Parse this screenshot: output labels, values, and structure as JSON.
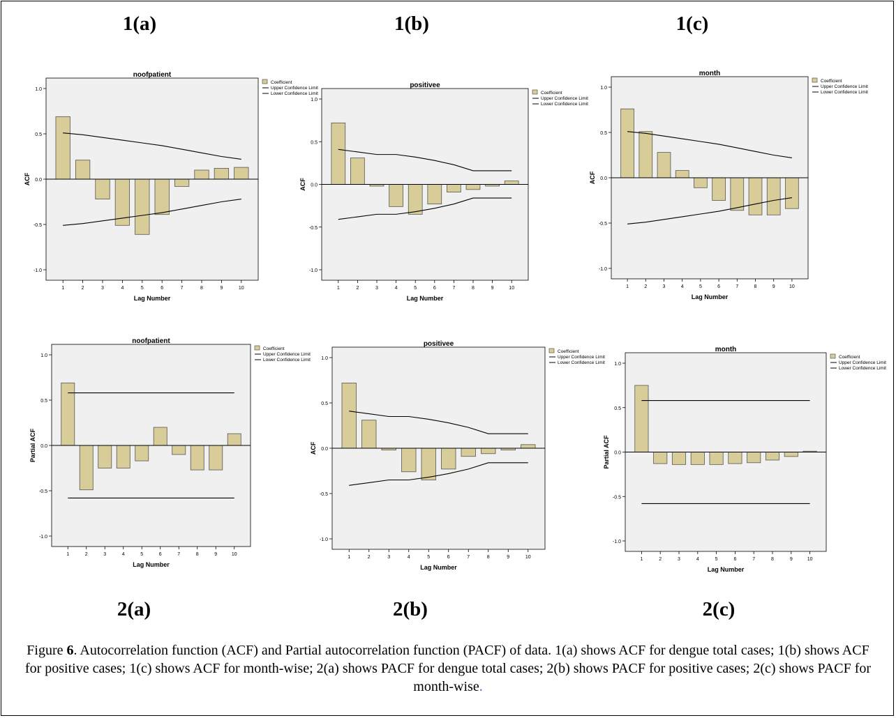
{
  "labels": {
    "p1a": "1(a)",
    "p1b": "1(b)",
    "p1c": "1(c)",
    "p2a": "2(a)",
    "p2b": "2(b)",
    "p2c": "2(c)"
  },
  "caption": {
    "prefix": "Figure ",
    "number": "6",
    "text": ". Autocorrelation function (ACF) and Partial autocorrelation function (PACF) of data. 1(a) shows ACF for dengue total cases; 1(b) shows ACF for positive cases; 1(c) shows ACF for month-wise; 2(a) shows PACF for dengue total cases; 2(b) shows PACF for positive cases; 2(c) shows PACF for month-wise",
    "end": "."
  },
  "colors": {
    "bar": "#d8cc98",
    "bar_stroke": "#555555",
    "plot_bg": "#f0f0f0",
    "line": "#000000"
  },
  "chart_data": [
    {
      "type": "bar",
      "title": "noofpatient",
      "xlabel": "Lag Number",
      "ylabel": "ACF",
      "categories": [
        "1",
        "2",
        "3",
        "4",
        "5",
        "6",
        "7",
        "8",
        "9",
        "10"
      ],
      "yticks": [
        "1.0",
        "0.5",
        "0.0",
        "-0.5",
        "-1.0"
      ],
      "ylim": [
        -1.0,
        1.0
      ],
      "series": [
        {
          "name": "Coefficient",
          "values": [
            0.69,
            0.21,
            -0.22,
            -0.51,
            -0.61,
            -0.39,
            -0.08,
            0.1,
            0.12,
            0.13
          ]
        },
        {
          "name": "Upper Confidence Limit",
          "values": [
            0.51,
            0.49,
            0.46,
            0.43,
            0.4,
            0.37,
            0.33,
            0.29,
            0.25,
            0.22
          ]
        },
        {
          "name": "Lower Confidence Limit",
          "values": [
            -0.51,
            -0.49,
            -0.46,
            -0.43,
            -0.4,
            -0.37,
            -0.33,
            -0.29,
            -0.25,
            -0.22
          ]
        }
      ]
    },
    {
      "type": "bar",
      "title": "positivee",
      "xlabel": "Lag Number",
      "ylabel": "ACF",
      "categories": [
        "1",
        "2",
        "3",
        "4",
        "5",
        "6",
        "7",
        "8",
        "9",
        "10"
      ],
      "yticks": [
        "1.0",
        "0.5",
        "0.0",
        "-0.5",
        "-1.0"
      ],
      "ylim": [
        -1.0,
        1.0
      ],
      "series": [
        {
          "name": "Coefficient",
          "values": [
            0.72,
            0.31,
            -0.02,
            -0.26,
            -0.35,
            -0.23,
            -0.09,
            -0.06,
            -0.02,
            0.04
          ]
        },
        {
          "name": "Upper Confidence Limit",
          "values": [
            0.41,
            0.38,
            0.35,
            0.35,
            0.32,
            0.28,
            0.23,
            0.16,
            0.16,
            0.16
          ]
        },
        {
          "name": "Lower Confidence Limit",
          "values": [
            -0.41,
            -0.38,
            -0.35,
            -0.35,
            -0.32,
            -0.28,
            -0.23,
            -0.16,
            -0.16,
            -0.16
          ]
        }
      ]
    },
    {
      "type": "bar",
      "title": "month",
      "xlabel": "Lag Number",
      "ylabel": "ACF",
      "categories": [
        "1",
        "2",
        "3",
        "4",
        "5",
        "6",
        "7",
        "8",
        "9",
        "10"
      ],
      "yticks": [
        "1.0",
        "0.5",
        "0.0",
        "-0.5",
        "-1.0"
      ],
      "ylim": [
        -1.0,
        1.0
      ],
      "series": [
        {
          "name": "Coefficient",
          "values": [
            0.76,
            0.51,
            0.28,
            0.08,
            -0.11,
            -0.25,
            -0.36,
            -0.41,
            -0.41,
            -0.34
          ]
        },
        {
          "name": "Upper Confidence Limit",
          "values": [
            0.51,
            0.49,
            0.46,
            0.43,
            0.4,
            0.37,
            0.33,
            0.29,
            0.25,
            0.22
          ]
        },
        {
          "name": "Lower Confidence Limit",
          "values": [
            -0.51,
            -0.49,
            -0.46,
            -0.43,
            -0.4,
            -0.37,
            -0.33,
            -0.29,
            -0.25,
            -0.22
          ]
        }
      ]
    },
    {
      "type": "bar",
      "title": "noofpatient",
      "xlabel": "Lag Number",
      "ylabel": "Partial ACF",
      "categories": [
        "1",
        "2",
        "3",
        "4",
        "5",
        "6",
        "7",
        "8",
        "9",
        "10"
      ],
      "yticks": [
        "1.0",
        "0.5",
        "0.0",
        "-0.5",
        "-1.0"
      ],
      "ylim": [
        -1.0,
        1.0
      ],
      "series": [
        {
          "name": "Coefficient",
          "values": [
            0.69,
            -0.49,
            -0.25,
            -0.25,
            -0.17,
            0.2,
            -0.1,
            -0.27,
            -0.27,
            0.13
          ]
        },
        {
          "name": "Upper Confidence Limit",
          "values": [
            0.58,
            0.58,
            0.58,
            0.58,
            0.58,
            0.58,
            0.58,
            0.58,
            0.58,
            0.58
          ]
        },
        {
          "name": "Lower Confidence Limit",
          "values": [
            -0.58,
            -0.58,
            -0.58,
            -0.58,
            -0.58,
            -0.58,
            -0.58,
            -0.58,
            -0.58,
            -0.58
          ]
        }
      ]
    },
    {
      "type": "bar",
      "title": "positivee",
      "xlabel": "Lag Number",
      "ylabel": "ACF",
      "categories": [
        "1",
        "2",
        "3",
        "4",
        "5",
        "6",
        "7",
        "8",
        "9",
        "10"
      ],
      "yticks": [
        "1.0",
        "0.5",
        "0.0",
        "-0.5",
        "-1.0"
      ],
      "ylim": [
        -1.0,
        1.0
      ],
      "series": [
        {
          "name": "Coefficient",
          "values": [
            0.72,
            0.31,
            -0.02,
            -0.26,
            -0.35,
            -0.23,
            -0.09,
            -0.06,
            -0.02,
            0.04
          ]
        },
        {
          "name": "Upper Confidence Limit",
          "values": [
            0.41,
            0.38,
            0.35,
            0.35,
            0.32,
            0.28,
            0.23,
            0.16,
            0.16,
            0.16
          ]
        },
        {
          "name": "Lower Confidence Limit",
          "values": [
            -0.41,
            -0.38,
            -0.35,
            -0.35,
            -0.32,
            -0.28,
            -0.23,
            -0.16,
            -0.16,
            -0.16
          ]
        }
      ]
    },
    {
      "type": "bar",
      "title": "month",
      "xlabel": "Lag Number",
      "ylabel": "Partial ACF",
      "categories": [
        "1",
        "2",
        "3",
        "4",
        "5",
        "6",
        "7",
        "8",
        "9",
        "10"
      ],
      "yticks": [
        "1.0",
        "0.5",
        "0.0",
        "-0.5",
        "-1.0"
      ],
      "ylim": [
        -1.0,
        1.0
      ],
      "series": [
        {
          "name": "Coefficient",
          "values": [
            0.75,
            -0.13,
            -0.14,
            -0.14,
            -0.14,
            -0.13,
            -0.12,
            -0.09,
            -0.05,
            0.01
          ]
        },
        {
          "name": "Upper Confidence Limit",
          "values": [
            0.58,
            0.58,
            0.58,
            0.58,
            0.58,
            0.58,
            0.58,
            0.58,
            0.58,
            0.58
          ]
        },
        {
          "name": "Lower Confidence Limit",
          "values": [
            -0.58,
            -0.58,
            -0.58,
            -0.58,
            -0.58,
            -0.58,
            -0.58,
            -0.58,
            -0.58,
            -0.58
          ]
        }
      ]
    }
  ]
}
